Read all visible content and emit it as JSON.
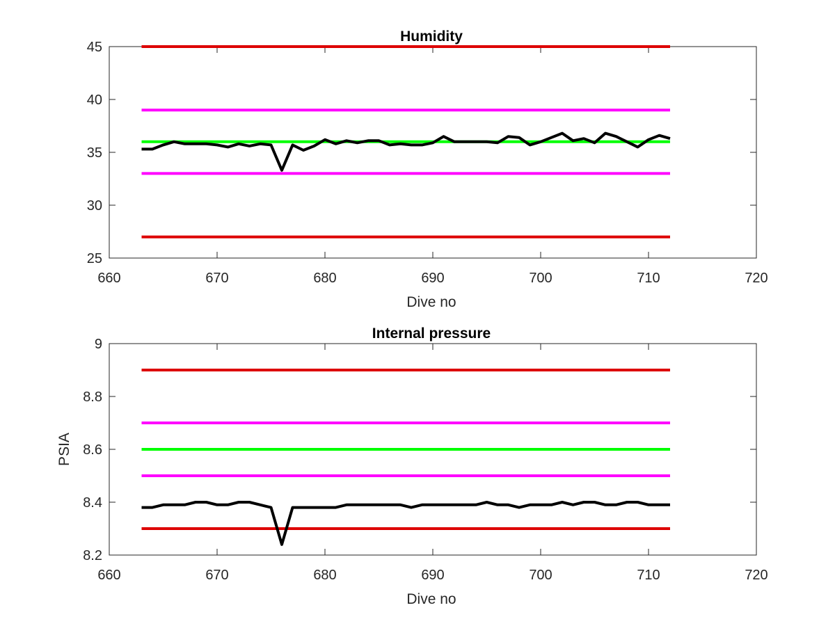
{
  "chart_data": [
    {
      "type": "line",
      "title": "Humidity",
      "xlabel": "Dive no",
      "ylabel": "",
      "xlim": [
        660,
        720
      ],
      "ylim": [
        25,
        45
      ],
      "xticks": [
        660,
        670,
        680,
        690,
        700,
        710,
        720
      ],
      "yticks": [
        25,
        30,
        35,
        40,
        45
      ],
      "xtick_labels": [
        "660",
        "670",
        "680",
        "690",
        "700",
        "710",
        "720"
      ],
      "ytick_labels": [
        "25",
        "30",
        "35",
        "40",
        "45"
      ],
      "grid": false,
      "series": [
        {
          "color": "#000000",
          "x": [
            663,
            664,
            665,
            666,
            667,
            668,
            669,
            670,
            671,
            672,
            673,
            674,
            675,
            676,
            677,
            678,
            679,
            680,
            681,
            682,
            683,
            684,
            685,
            686,
            687,
            688,
            689,
            690,
            691,
            692,
            693,
            694,
            695,
            696,
            697,
            698,
            699,
            700,
            701,
            702,
            703,
            704,
            705,
            706,
            707,
            708,
            709,
            710,
            711,
            712
          ],
          "y": [
            35.3,
            35.3,
            35.7,
            36.0,
            35.8,
            35.8,
            35.8,
            35.7,
            35.5,
            35.8,
            35.6,
            35.8,
            35.7,
            33.3,
            35.7,
            35.2,
            35.6,
            36.2,
            35.8,
            36.1,
            35.9,
            36.1,
            36.1,
            35.7,
            35.8,
            35.7,
            35.7,
            35.9,
            36.5,
            36.0,
            36.0,
            36.0,
            36.0,
            35.9,
            36.5,
            36.4,
            35.7,
            36.0,
            36.4,
            36.8,
            36.1,
            36.3,
            35.9,
            36.8,
            36.5,
            36.0,
            35.5,
            36.2,
            36.6,
            36.3
          ]
        },
        {
          "color": "#00ff00",
          "x": [
            663,
            712
          ],
          "y": [
            36,
            36
          ]
        },
        {
          "color": "#ff00ff",
          "x": [
            663,
            712
          ],
          "y": [
            39,
            39
          ]
        },
        {
          "color": "#ff00ff",
          "x": [
            663,
            712
          ],
          "y": [
            33,
            33
          ]
        },
        {
          "color": "#dd0000",
          "x": [
            663,
            712
          ],
          "y": [
            45,
            45
          ]
        },
        {
          "color": "#dd0000",
          "x": [
            663,
            712
          ],
          "y": [
            27,
            27
          ]
        }
      ]
    },
    {
      "type": "line",
      "title": "Internal pressure",
      "xlabel": "Dive no",
      "ylabel": "PSIA",
      "xlim": [
        660,
        720
      ],
      "ylim": [
        8.2,
        9
      ],
      "xticks": [
        660,
        670,
        680,
        690,
        700,
        710,
        720
      ],
      "yticks": [
        8.2,
        8.4,
        8.6,
        8.8,
        9
      ],
      "xtick_labels": [
        "660",
        "670",
        "680",
        "690",
        "700",
        "710",
        "720"
      ],
      "ytick_labels": [
        "8.2",
        "8.4",
        "8.6",
        "8.8",
        "9"
      ],
      "grid": false,
      "series": [
        {
          "color": "#000000",
          "x": [
            663,
            664,
            665,
            666,
            667,
            668,
            669,
            670,
            671,
            672,
            673,
            674,
            675,
            676,
            677,
            678,
            679,
            680,
            681,
            682,
            683,
            684,
            685,
            686,
            687,
            688,
            689,
            690,
            691,
            692,
            693,
            694,
            695,
            696,
            697,
            698,
            699,
            700,
            701,
            702,
            703,
            704,
            705,
            706,
            707,
            708,
            709,
            710,
            711,
            712
          ],
          "y": [
            8.38,
            8.38,
            8.39,
            8.39,
            8.39,
            8.4,
            8.4,
            8.39,
            8.39,
            8.4,
            8.4,
            8.39,
            8.38,
            8.24,
            8.38,
            8.38,
            8.38,
            8.38,
            8.38,
            8.39,
            8.39,
            8.39,
            8.39,
            8.39,
            8.39,
            8.38,
            8.39,
            8.39,
            8.39,
            8.39,
            8.39,
            8.39,
            8.4,
            8.39,
            8.39,
            8.38,
            8.39,
            8.39,
            8.39,
            8.4,
            8.39,
            8.4,
            8.4,
            8.39,
            8.39,
            8.4,
            8.4,
            8.39,
            8.39,
            8.39
          ]
        },
        {
          "color": "#00ff00",
          "x": [
            663,
            712
          ],
          "y": [
            8.6,
            8.6
          ]
        },
        {
          "color": "#ff00ff",
          "x": [
            663,
            712
          ],
          "y": [
            8.7,
            8.7
          ]
        },
        {
          "color": "#ff00ff",
          "x": [
            663,
            712
          ],
          "y": [
            8.5,
            8.5
          ]
        },
        {
          "color": "#dd0000",
          "x": [
            663,
            712
          ],
          "y": [
            8.9,
            8.9
          ]
        },
        {
          "color": "#dd0000",
          "x": [
            663,
            712
          ],
          "y": [
            8.3,
            8.3
          ]
        }
      ]
    }
  ]
}
